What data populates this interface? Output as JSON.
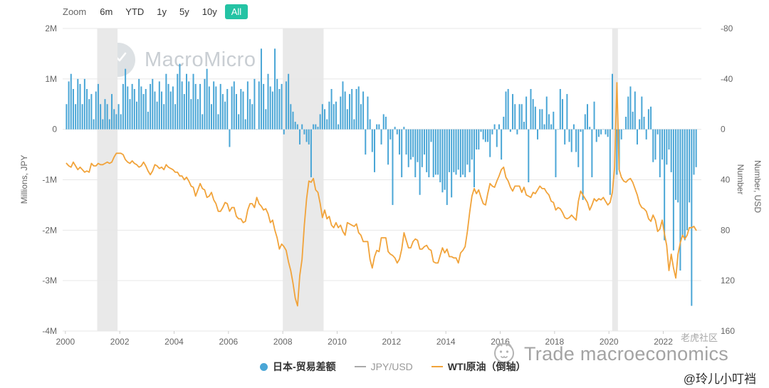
{
  "colors": {
    "accent": "#24c3a4",
    "bar": "#4aa6d6",
    "wti": "#f1a33a",
    "jpyusd": "#aaaaaa",
    "band": "#e9e9e9",
    "grid": "#e7e7e7",
    "axis_text": "#666666"
  },
  "controls": {
    "zoom_label": "Zoom",
    "buttons": [
      {
        "label": "6m",
        "active": false
      },
      {
        "label": "YTD",
        "active": false
      },
      {
        "label": "1y",
        "active": false
      },
      {
        "label": "5y",
        "active": false
      },
      {
        "label": "10y",
        "active": false
      },
      {
        "label": "All",
        "active": true
      }
    ]
  },
  "watermark": {
    "brand": "MacroMicro"
  },
  "overlay": {
    "community": "老虎社区",
    "title": "Trade macroeconomics",
    "handle": "@玲儿小叮裆"
  },
  "legend": [
    {
      "label": "日本-贸易差额",
      "type": "bar",
      "color": "#4aa6d6"
    },
    {
      "label": "JPY/USD",
      "type": "line",
      "color": "#aaaaaa",
      "muted": true
    },
    {
      "label": "WTI原油（倒轴）",
      "type": "line",
      "color": "#f1a33a"
    }
  ],
  "chart_data": {
    "type": "bar",
    "title": "",
    "x_range": [
      1999.9,
      2023.4
    ],
    "x_ticks": [
      2000,
      2002,
      2004,
      2006,
      2008,
      2010,
      2012,
      2014,
      2016,
      2018,
      2020,
      2022
    ],
    "left_axis": {
      "title": "Millions, JPY",
      "range": [
        -4,
        2
      ],
      "ticks": [
        {
          "v": 2,
          "label": "2M"
        },
        {
          "v": 1,
          "label": "1M"
        },
        {
          "v": 0,
          "label": "0"
        },
        {
          "v": -1,
          "label": "-1M"
        },
        {
          "v": -2,
          "label": "-2M"
        },
        {
          "v": -3,
          "label": "-3M"
        },
        {
          "v": -4,
          "label": "-4M"
        }
      ]
    },
    "right_axis": {
      "titles": [
        "Number",
        "Number, USD"
      ],
      "range": [
        -80,
        160
      ],
      "ticks": [
        -80,
        -40,
        0,
        40,
        80,
        120,
        160
      ],
      "note": "WTI plotted on inverted USD axis"
    },
    "recession_bands": [
      [
        2001.17,
        2001.92
      ],
      [
        2008.0,
        2009.5
      ],
      [
        2020.12,
        2020.33
      ]
    ],
    "series": [
      {
        "name": "日本-贸易差额",
        "type": "bar",
        "axis": "left",
        "color": "#4aa6d6",
        "start_year": 2000,
        "freq": "monthly",
        "values": [
          0.5,
          0.95,
          1.1,
          0.8,
          0.5,
          1.0,
          0.9,
          0.5,
          1.0,
          0.8,
          0.6,
          0.7,
          0.2,
          0.75,
          0.9,
          0.5,
          0.2,
          0.6,
          0.5,
          0.2,
          0.7,
          0.4,
          0.3,
          0.5,
          0.3,
          0.9,
          1.2,
          0.85,
          0.6,
          0.9,
          0.8,
          0.55,
          1.0,
          0.85,
          0.7,
          0.8,
          0.35,
          0.9,
          1.0,
          0.75,
          0.55,
          0.95,
          0.75,
          0.5,
          1.1,
          0.9,
          0.75,
          0.85,
          0.5,
          1.1,
          1.3,
          0.95,
          0.7,
          1.1,
          0.95,
          0.6,
          1.1,
          0.9,
          0.6,
          0.9,
          0.3,
          1.0,
          1.2,
          0.85,
          0.5,
          0.95,
          0.85,
          0.3,
          0.9,
          0.7,
          0.55,
          0.8,
          -0.35,
          0.85,
          0.95,
          0.7,
          0.3,
          0.8,
          0.75,
          0.2,
          0.95,
          0.6,
          0.5,
          1.0,
          0.0,
          0.95,
          1.6,
          0.9,
          0.4,
          1.1,
          0.85,
          0.75,
          1.6,
          1.0,
          0.8,
          0.9,
          -0.1,
          0.95,
          1.1,
          0.5,
          0.35,
          0.15,
          0.1,
          -0.3,
          0.1,
          -0.1,
          -0.25,
          -0.3,
          -0.95,
          0.1,
          0.1,
          0.05,
          0.3,
          0.5,
          0.4,
          0.2,
          0.55,
          0.8,
          0.5,
          0.55,
          0.1,
          0.65,
          0.95,
          0.75,
          0.4,
          0.7,
          0.8,
          0.2,
          0.8,
          0.85,
          0.5,
          0.75,
          -0.5,
          0.65,
          0.2,
          -0.45,
          -0.85,
          0.1,
          0.1,
          -0.3,
          0.3,
          0.25,
          -0.7,
          -0.2,
          -1.5,
          0.05,
          -0.1,
          -0.5,
          -0.95,
          0.05,
          -0.5,
          -0.75,
          -0.6,
          -0.55,
          -0.95,
          -0.65,
          -1.3,
          -0.75,
          -0.5,
          -0.85,
          -0.95,
          -0.25,
          -0.95,
          -0.9,
          -0.9,
          -1.05,
          -1.25,
          -1.2,
          -1.5,
          -0.85,
          -1.35,
          -0.85,
          -0.9,
          -0.8,
          -0.95,
          -0.9,
          -0.95,
          -0.7,
          -0.85,
          -0.6,
          -1.15,
          -0.4,
          -0.4,
          -0.05,
          -0.2,
          -0.25,
          -0.25,
          -0.55,
          -0.1,
          0.1,
          -0.35,
          0.1,
          -0.6,
          0.25,
          0.75,
          0.8,
          -0.05,
          0.7,
          0.5,
          -0.1,
          0.5,
          0.5,
          0.15,
          0.65,
          -1.05,
          0.8,
          0.6,
          0.45,
          -0.2,
          0.4,
          0.4,
          0.1,
          0.65,
          0.3,
          0.1,
          0.35,
          -0.95,
          0.0,
          0.8,
          0.6,
          -0.3,
          0.7,
          -0.25,
          -0.45,
          0.1,
          -0.45,
          -0.75,
          -0.05,
          -1.4,
          0.3,
          0.5,
          0.05,
          -0.95,
          0.55,
          -0.25,
          -0.15,
          -0.1,
          0.0,
          -0.1,
          -0.15,
          -1.3,
          1.1,
          0.0,
          -0.9,
          -0.8,
          -0.2,
          0.0,
          0.25,
          0.65,
          0.85,
          0.35,
          0.75,
          -0.3,
          0.2,
          0.65,
          0.25,
          -0.2,
          0.4,
          0.45,
          -0.65,
          -0.6,
          -0.1,
          -0.95,
          -0.6,
          -2.2,
          -0.7,
          -0.4,
          -0.85,
          -2.4,
          -1.4,
          -1.45,
          -2.8,
          -2.1,
          -2.2,
          -2.0,
          -1.45,
          -3.5,
          -0.9,
          -0.75
        ]
      },
      {
        "name": "JPY/USD",
        "type": "line",
        "axis": "right-number",
        "color": "#aaaaaa",
        "visible": false,
        "values": []
      },
      {
        "name": "WTI原油（倒轴）",
        "type": "line",
        "axis": "right-usd-inverted",
        "color": "#f1a33a",
        "start_year": 2000,
        "freq": "monthly",
        "values": [
          27,
          29,
          30,
          26,
          29,
          32,
          30,
          32,
          34,
          33,
          34,
          27,
          29,
          29,
          27,
          28,
          28,
          27,
          26,
          27,
          26,
          22,
          19,
          19,
          19,
          20,
          24,
          26,
          27,
          25,
          27,
          28,
          30,
          29,
          26,
          29,
          33,
          36,
          33,
          28,
          29,
          31,
          30,
          32,
          28,
          30,
          31,
          32,
          34,
          34,
          37,
          37,
          40,
          38,
          41,
          45,
          46,
          53,
          48,
          43,
          47,
          48,
          54,
          53,
          50,
          56,
          59,
          65,
          65,
          62,
          58,
          59,
          65,
          62,
          62,
          69,
          71,
          71,
          74,
          73,
          64,
          59,
          59,
          62,
          54,
          59,
          61,
          64,
          63,
          67,
          74,
          72,
          80,
          86,
          95,
          91,
          93,
          96,
          105,
          112,
          122,
          134,
          140,
          116,
          103,
          76,
          55,
          41,
          42,
          39,
          48,
          50,
          59,
          70,
          64,
          71,
          69,
          76,
          78,
          74,
          78,
          76,
          81,
          84,
          74,
          75,
          76,
          77,
          75,
          82,
          84,
          89,
          89,
          89,
          103,
          110,
          101,
          96,
          97,
          86,
          86,
          86,
          97,
          99,
          100,
          102,
          106,
          103,
          95,
          82,
          88,
          94,
          94,
          89,
          87,
          88,
          95,
          95,
          93,
          92,
          95,
          96,
          105,
          106,
          106,
          100,
          94,
          98,
          95,
          101,
          101,
          102,
          102,
          106,
          98,
          96,
          93,
          81,
          66,
          53,
          47,
          51,
          48,
          54,
          59,
          60,
          51,
          43,
          45,
          46,
          41,
          37,
          32,
          30,
          38,
          41,
          46,
          49,
          45,
          45,
          45,
          50,
          46,
          52,
          53,
          54,
          50,
          51,
          48,
          45,
          47,
          47,
          50,
          52,
          57,
          58,
          64,
          62,
          63,
          66,
          70,
          71,
          70,
          68,
          70,
          72,
          57,
          49,
          52,
          55,
          58,
          64,
          60,
          55,
          57,
          55,
          56,
          54,
          57,
          60,
          58,
          50,
          30,
          -37,
          32,
          38,
          41,
          42,
          40,
          39,
          42,
          47,
          52,
          59,
          62,
          63,
          65,
          71,
          73,
          68,
          72,
          81,
          79,
          72,
          83,
          92,
          112,
          99,
          110,
          118,
          99,
          90,
          84,
          87,
          84,
          78,
          78,
          77,
          80
        ]
      }
    ]
  }
}
